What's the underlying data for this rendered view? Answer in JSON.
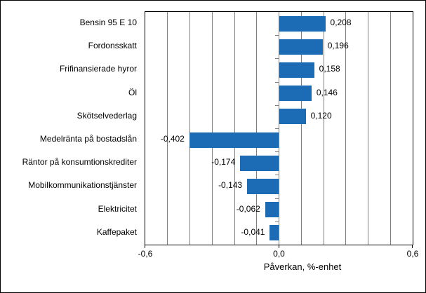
{
  "chart_data": {
    "type": "bar",
    "orientation": "horizontal",
    "title": "",
    "xlabel": "Påverkan, %-enhet",
    "ylabel": "",
    "xlim": [
      -0.6,
      0.6
    ],
    "gridline_step": 0.1,
    "grid": "vertical",
    "legend": "none",
    "categories": [
      "Bensin 95 E 10",
      "Fordonsskatt",
      "Frifinansierade hyror",
      "Öl",
      "Skötselvederlag",
      "Medelränta på bostadslån",
      "Räntor på konsumtionskrediter",
      "Mobilkommunikationstjänster",
      "Elektricitet",
      "Kaffepaket"
    ],
    "values": [
      0.208,
      0.196,
      0.158,
      0.146,
      0.12,
      -0.402,
      -0.174,
      -0.143,
      -0.062,
      -0.041
    ],
    "value_labels": [
      "0,208",
      "0,196",
      "0,158",
      "0,146",
      "0,120",
      "-0,402",
      "-0,174",
      "-0,143",
      "-0,062",
      "-0,041"
    ],
    "xticks": [
      {
        "value": -0.6,
        "label": "-0,6"
      },
      {
        "value": 0.0,
        "label": "0,0"
      },
      {
        "value": 0.6,
        "label": "0,6"
      }
    ],
    "colors": {
      "bar": "#1b6cb5",
      "gridline": "#808080",
      "axis_border": "#000000",
      "text": "#000000",
      "background": "#ffffff"
    }
  }
}
